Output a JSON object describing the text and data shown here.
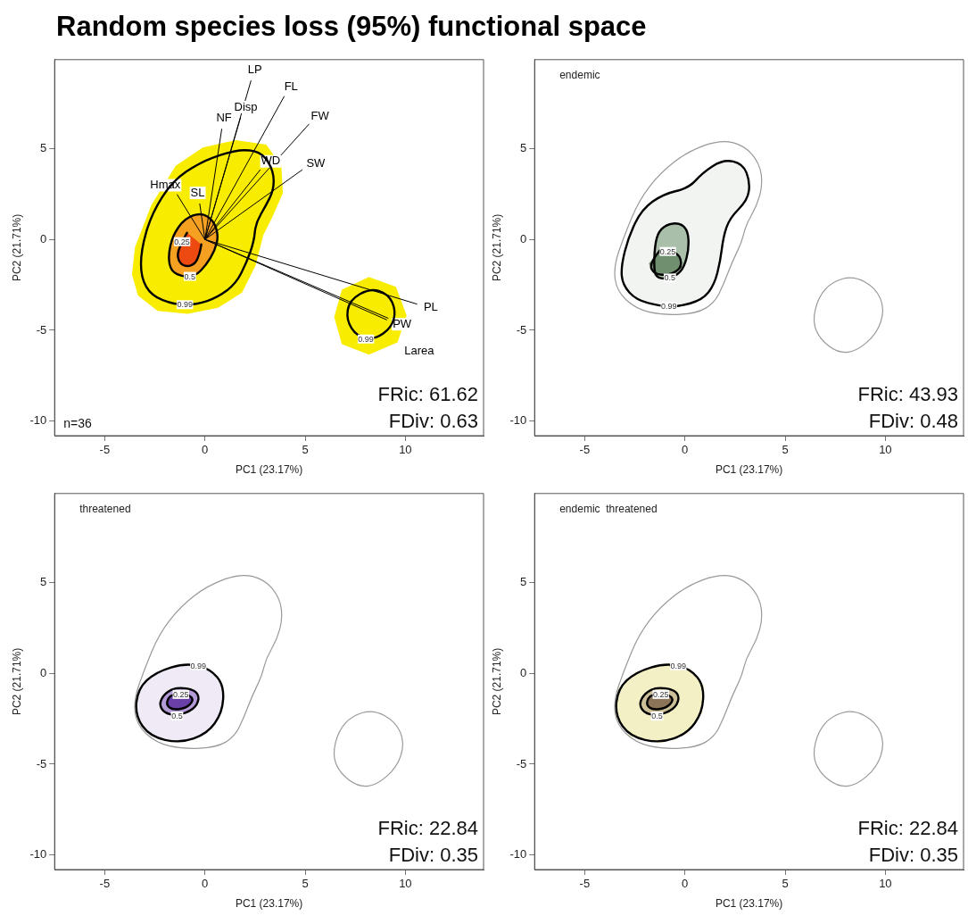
{
  "chart_data": [
    {
      "type": "line",
      "title": "Random species loss (95%) functional space",
      "xlabel": "PC1 (23.17%)",
      "ylabel": "PC2 (21.71%)",
      "xlim": [
        -7.5,
        13.9
      ],
      "ylim": [
        -10.8,
        9.9
      ],
      "xticks": [
        -5,
        0,
        5,
        10
      ],
      "yticks": [
        -10,
        -5,
        0,
        5
      ],
      "grid": false,
      "legend": false,
      "marker": "none",
      "series": [
        {
          "type": "area",
          "color": "#f8ec00",
          "x": [
            -3.64,
            -3.49,
            -2.67,
            -1.46,
            -0.11,
            1.55,
            3.06,
            3.81,
            3.89,
            3.36,
            2.91,
            2.53,
            1.85,
            0.65,
            -0.86,
            -2.36,
            -3.34,
            -3.64
          ],
          "values": [
            -1.93,
            -0.43,
            1.9,
            4.06,
            5.06,
            5.47,
            5.22,
            4.06,
            2.56,
            1.23,
            0.23,
            -1.43,
            -2.93,
            -3.76,
            -4.09,
            -3.93,
            -3.09,
            -1.93
          ]
        },
        {
          "type": "area",
          "color": "#f8ec00",
          "x": [
            8.18,
            9.53,
            10.06,
            9.61,
            8.18,
            6.83,
            6.45,
            6.83,
            8.18
          ],
          "values": [
            -2.06,
            -2.61,
            -4.18,
            -5.66,
            -6.34,
            -5.76,
            -4.26,
            -2.76,
            -2.06
          ]
        },
        {
          "type": "area",
          "color": "#f5a020",
          "x": [
            -1.08,
            -1.69,
            -1.84,
            -1.61,
            -1.01,
            -0.18,
            0.42,
            0.68,
            0.5,
            0.05,
            -0.48,
            -1.08
          ],
          "values": [
            -2.06,
            -1.76,
            -0.93,
            0.23,
            1.15,
            1.48,
            1.06,
            0.23,
            -0.6,
            -1.43,
            -2.01,
            -2.06
          ]
        },
        {
          "type": "area",
          "color": "#ec4a10",
          "x": [
            -0.89,
            -1.39,
            -1.31,
            -0.93,
            -0.48,
            -0.26,
            -0.18,
            -0.89
          ],
          "values": [
            0.37,
            -0.6,
            -1.26,
            -1.51,
            -1.35,
            -0.77,
            -0.27,
            0.37
          ]
        },
        {
          "type": "line",
          "name": "LP",
          "color": "#000000",
          "x": [
            0,
            2.3
          ],
          "values": [
            0,
            8.75
          ]
        },
        {
          "type": "line",
          "name": "FL",
          "color": "#000000",
          "x": [
            0,
            3.96
          ],
          "values": [
            0,
            7.89
          ]
        },
        {
          "type": "line",
          "name": "Disp",
          "color": "#000000",
          "x": [
            0,
            1.78
          ],
          "values": [
            0,
            6.72
          ]
        },
        {
          "type": "line",
          "name": "NF",
          "color": "#000000",
          "x": [
            0,
            0.84
          ],
          "values": [
            0,
            6.09
          ]
        },
        {
          "type": "line",
          "name": "FW",
          "color": "#000000",
          "x": [
            0,
            5.2
          ],
          "values": [
            0,
            6.36
          ]
        },
        {
          "type": "line",
          "name": "WD",
          "color": "#000000",
          "x": [
            0,
            2.76
          ],
          "values": [
            0,
            3.84
          ]
        },
        {
          "type": "line",
          "name": "SW",
          "color": "#000000",
          "x": [
            0,
            4.86
          ],
          "values": [
            0,
            3.84
          ]
        },
        {
          "type": "line",
          "name": "Hmax",
          "color": "#000000",
          "x": [
            0,
            -1.39
          ],
          "values": [
            0,
            2.48
          ]
        },
        {
          "type": "line",
          "name": "SL",
          "color": "#000000",
          "x": [
            0,
            -0.26
          ],
          "values": [
            0,
            1.98
          ]
        },
        {
          "type": "line",
          "name": "PL",
          "color": "#000000",
          "x": [
            0,
            10.59
          ],
          "values": [
            0,
            -3.56
          ]
        },
        {
          "type": "line",
          "name": "PW",
          "color": "#000000",
          "x": [
            0,
            9.08
          ],
          "values": [
            0,
            -4.43
          ]
        },
        {
          "type": "line",
          "name": "Larea",
          "color": "#000000",
          "x": [
            0,
            9.15
          ],
          "values": [
            0,
            -4.34
          ]
        }
      ],
      "annotations": [
        "0.99",
        "0.5",
        "0.25",
        "0.99",
        "n=36",
        "FRic: 61.62",
        "FDiv: 0.63"
      ]
    },
    {
      "type": "line",
      "subtitle": "endemic",
      "xlabel": "PC1 (23.17%)",
      "ylabel": "PC2 (21.71%)",
      "xlim": [
        -7.5,
        13.9
      ],
      "ylim": [
        -10.8,
        9.9
      ],
      "xticks": [
        -5,
        0,
        5,
        10
      ],
      "yticks": [
        -10,
        -5,
        0,
        5
      ],
      "grid": false,
      "legend": false,
      "marker": "none",
      "series": [
        {
          "type": "area",
          "color": "#f1f4f1",
          "x": [
            -1.23,
            -2.44,
            -3.11,
            -3.19,
            -2.81,
            -2.14,
            -1.08,
            0.2,
            0.87,
            1.92,
            2.9,
            3.25,
            3.13,
            2.23,
            1.92,
            1.77,
            1.47,
            0.87,
            -0.33,
            -1.23
          ],
          "values": [
            -3.67,
            -3.33,
            -2.5,
            -1.5,
            0.17,
            1.67,
            2.5,
            2.83,
            3.67,
            4.42,
            4.17,
            3.17,
            2.17,
            1.17,
            0.17,
            -1.17,
            -2.5,
            -3.33,
            -3.7,
            -3.67
          ]
        },
        {
          "type": "area",
          "color": "#a9bfa9",
          "x": [
            -1.08,
            -1.53,
            -1.53,
            -1.38,
            -0.93,
            -0.26,
            0.15,
            0.2,
            -0.03,
            -0.41,
            -1.08
          ],
          "values": [
            -2.2,
            -2.0,
            -0.67,
            0.33,
            0.83,
            0.92,
            0.5,
            -0.5,
            -1.5,
            -2.0,
            -2.2
          ]
        },
        {
          "type": "area",
          "color": "#6f8f6f",
          "x": [
            -1.23,
            -1.8,
            -1.53,
            -0.78,
            -0.18,
            -0.21,
            -0.45,
            -1.23
          ],
          "values": [
            -0.58,
            -1.33,
            -1.92,
            -1.97,
            -1.58,
            -1.0,
            -0.75,
            -0.58
          ]
        }
      ],
      "annotations": [
        "0.99",
        "0.5",
        "0.25",
        "FRic: 43.93",
        "FDiv: 0.48"
      ]
    },
    {
      "type": "line",
      "subtitle": "threatened",
      "xlabel": "PC1 (23.17%)",
      "ylabel": "PC2 (21.71%)",
      "xlim": [
        -7.5,
        13.9
      ],
      "ylim": [
        -10.8,
        9.9
      ],
      "xticks": [
        -5,
        0,
        5,
        10
      ],
      "yticks": [
        -10,
        -5,
        0,
        5
      ],
      "grid": false,
      "legend": false,
      "marker": "none",
      "series": [
        {
          "type": "area",
          "color": "#efeaf6",
          "x": [
            -0.93,
            0.27,
            0.95,
            0.87,
            0.12,
            -1.23,
            -2.74,
            -3.49,
            -3.34,
            -2.44,
            -0.93
          ],
          "values": [
            0.58,
            0.25,
            -0.66,
            -2.16,
            -3.32,
            -3.85,
            -3.48,
            -2.32,
            -0.83,
            0.08,
            0.58
          ]
        },
        {
          "type": "area",
          "color": "#b49ad6",
          "x": [
            -1.39,
            -0.48,
            -0.26,
            -0.56,
            -1.39,
            -2.06,
            -2.29,
            -1.99,
            -1.39
          ],
          "values": [
            -0.75,
            -0.91,
            -1.41,
            -1.99,
            -2.35,
            -2.16,
            -1.66,
            -1.08,
            -0.75
          ]
        },
        {
          "type": "area",
          "color": "#6a3fa8",
          "x": [
            -1.61,
            -0.78,
            -0.56,
            -0.93,
            -1.61,
            -1.92,
            -1.84,
            -1.61
          ],
          "values": [
            -1.16,
            -1.16,
            -1.49,
            -1.91,
            -2.02,
            -1.74,
            -1.36,
            -1.16
          ]
        }
      ],
      "annotations": [
        "0.99",
        "0.5",
        "0.25",
        "FRic: 22.84",
        "FDiv: 0.35"
      ]
    },
    {
      "type": "line",
      "subtitle": "endemic  threatened",
      "xlabel": "PC1 (23.17%)",
      "ylabel": "PC2 (21.71%)",
      "xlim": [
        -7.5,
        13.9
      ],
      "ylim": [
        -10.8,
        9.9
      ],
      "xticks": [
        -5,
        0,
        5,
        10
      ],
      "yticks": [
        -10,
        -5,
        0,
        5
      ],
      "grid": false,
      "legend": false,
      "marker": "none",
      "series": [
        {
          "type": "area",
          "color": "#f3f0c6",
          "x": [
            -0.93,
            0.27,
            0.95,
            0.87,
            0.12,
            -1.23,
            -2.74,
            -3.49,
            -3.34,
            -2.44,
            -0.93
          ],
          "values": [
            0.58,
            0.25,
            -0.66,
            -2.16,
            -3.32,
            -3.85,
            -3.48,
            -2.32,
            -0.83,
            0.08,
            0.58
          ]
        },
        {
          "type": "area",
          "color": "#cdbf98",
          "x": [
            -1.39,
            -0.48,
            -0.26,
            -0.56,
            -1.39,
            -2.06,
            -2.29,
            -1.99,
            -1.39
          ],
          "values": [
            -0.75,
            -0.91,
            -1.41,
            -1.99,
            -2.35,
            -2.16,
            -1.66,
            -1.08,
            -0.75
          ]
        },
        {
          "type": "area",
          "color": "#8c7458",
          "x": [
            -1.61,
            -0.78,
            -0.56,
            -0.93,
            -1.61,
            -1.92,
            -1.84,
            -1.61
          ],
          "values": [
            -1.16,
            -1.16,
            -1.49,
            -1.91,
            -2.02,
            -1.74,
            -1.36,
            -1.16
          ]
        }
      ],
      "annotations": [
        "0.99",
        "0.5",
        "0.25",
        "FRic: 22.84",
        "FDiv: 0.35"
      ]
    }
  ]
}
